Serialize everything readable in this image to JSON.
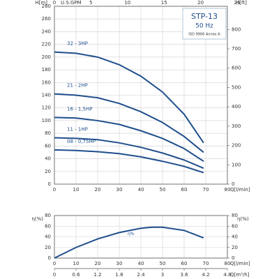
{
  "chart_data": [
    {
      "type": "line",
      "title": "STP-13",
      "subtitle": "50 Hz",
      "annotation": "ISO 9906 Annex A",
      "y_label": "H[m]",
      "y2_label": "H[ft]",
      "x_label": "Q[l/min]",
      "x2_label": "U.S.GPM",
      "x": [
        0,
        10,
        20,
        30,
        40,
        50,
        60,
        69
      ],
      "series": [
        {
          "name": "32 - 3HP",
          "color": "#1f4e8c",
          "values": [
            208,
            206,
            200,
            188,
            170,
            145,
            110,
            65
          ]
        },
        {
          "name": "21 - 2HP",
          "color": "#1f4e8c",
          "values": [
            142,
            140,
            136,
            127,
            114,
            97,
            75,
            50
          ]
        },
        {
          "name": "16 - 1,5HP",
          "color": "#1f4e8c",
          "values": [
            105,
            104,
            100,
            94,
            84,
            72,
            56,
            36
          ]
        },
        {
          "name": "11 - 1HP",
          "color": "#1f4e8c",
          "values": [
            73,
            72,
            70,
            65,
            58,
            49,
            38,
            25
          ]
        },
        {
          "name": "08 - 0,75HP",
          "color": "#1f4e8c",
          "values": [
            54,
            53,
            51,
            48,
            43,
            36,
            28,
            18
          ]
        }
      ],
      "xlim": [
        0,
        80
      ],
      "xticks": [
        0,
        10,
        20,
        30,
        40,
        50,
        60,
        70,
        80
      ],
      "x2lim": [
        0,
        25
      ],
      "x2ticks": [
        0,
        5,
        10,
        15,
        20,
        25
      ],
      "ylim": [
        0,
        280
      ],
      "yticks": [
        0,
        20,
        40,
        60,
        80,
        100,
        120,
        140,
        160,
        180,
        200,
        220,
        240,
        260,
        280
      ],
      "y2lim": [
        0,
        920
      ],
      "y2ticks": [
        0,
        100,
        200,
        300,
        400,
        500,
        600,
        700,
        800
      ],
      "grid": true
    },
    {
      "type": "line",
      "y_label": "η(%)",
      "y2_label": "η(%)",
      "x_label": "Q[l/min]",
      "x2_label": "Q[m³/h]",
      "x": [
        0,
        10,
        20,
        30,
        40,
        45,
        50,
        60,
        69
      ],
      "series": [
        {
          "name": "η%",
          "color": "#1f4e8c",
          "values": [
            0,
            20,
            36,
            48,
            56,
            58,
            58,
            52,
            38
          ]
        }
      ],
      "xlim": [
        0,
        80
      ],
      "xticks": [
        0,
        10,
        20,
        30,
        40,
        50,
        60,
        70,
        80
      ],
      "x2lim": [
        0,
        4.8
      ],
      "x2ticks": [
        0,
        0.6,
        1.2,
        1.8,
        2.4,
        3,
        3.6,
        4.2,
        4.8
      ],
      "ylim": [
        0,
        80
      ],
      "yticks": [
        0,
        20,
        40,
        60,
        80
      ],
      "y2ticks": [
        0,
        20,
        40,
        60,
        80
      ],
      "grid": true
    }
  ]
}
